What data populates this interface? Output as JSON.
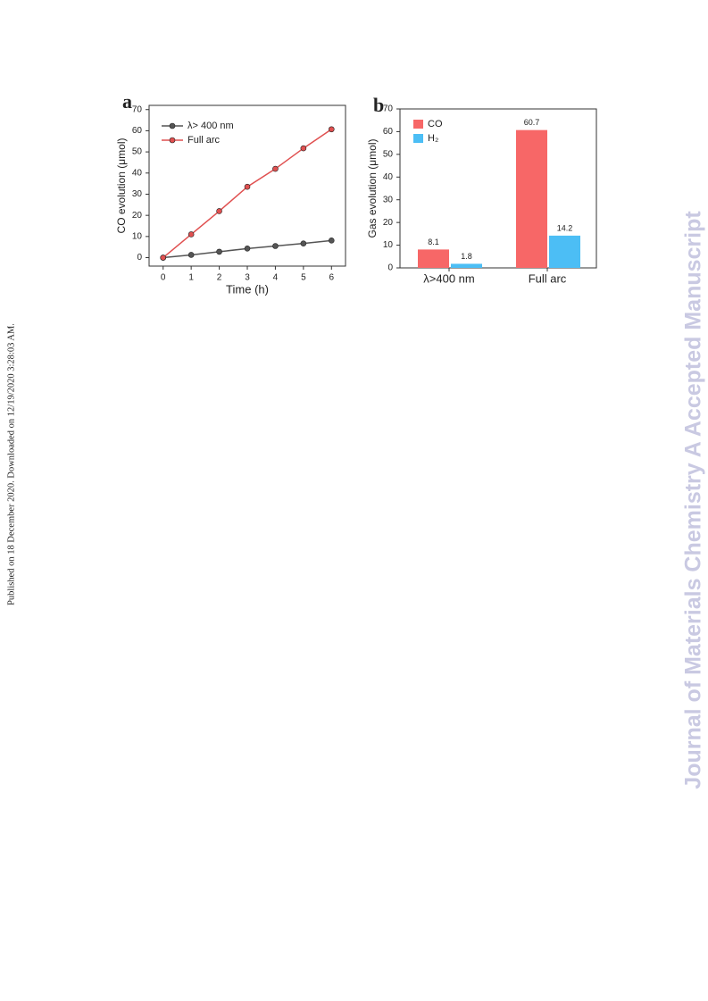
{
  "published_note": "Published on 18 December 2020. Downloaded on 12/19/2020 3:28:03 AM.",
  "watermark": "Journal of Materials Chemistry A Accepted Manuscript",
  "chart_data": [
    {
      "type": "line",
      "panel_label": "a",
      "x_label": "Time (h)",
      "y_label": "CO evolution (μmol)",
      "x": [
        0,
        1,
        2,
        3,
        4,
        5,
        6
      ],
      "series": [
        {
          "name": "λ> 400 nm",
          "color": "#555555",
          "values": [
            0,
            1.3,
            2.8,
            4.3,
            5.5,
            6.7,
            8.1
          ]
        },
        {
          "name": "Full arc",
          "color": "#e05050",
          "values": [
            0,
            11,
            22,
            33.5,
            42,
            51.7,
            60.7
          ]
        }
      ],
      "xlim": [
        -0.5,
        6.5
      ],
      "xticks": [
        0,
        1,
        2,
        3,
        4,
        5,
        6
      ],
      "ylim": [
        -4,
        72
      ],
      "yticks": [
        0,
        10,
        20,
        30,
        40,
        50,
        60,
        70
      ],
      "legend": "upper-left"
    },
    {
      "type": "bar",
      "panel_label": "b",
      "y_label": "Gas evolution (μmol)",
      "categories": [
        "λ>400 nm",
        "Full arc"
      ],
      "series": [
        {
          "name": "CO",
          "color": "#f76767",
          "values": [
            8.1,
            60.7
          ]
        },
        {
          "name": "H₂",
          "color": "#4cbef5",
          "values": [
            1.8,
            14.2
          ]
        }
      ],
      "ylim": [
        0,
        70
      ],
      "yticks": [
        0,
        10,
        20,
        30,
        40,
        50,
        60,
        70
      ],
      "legend": "upper-left"
    }
  ]
}
